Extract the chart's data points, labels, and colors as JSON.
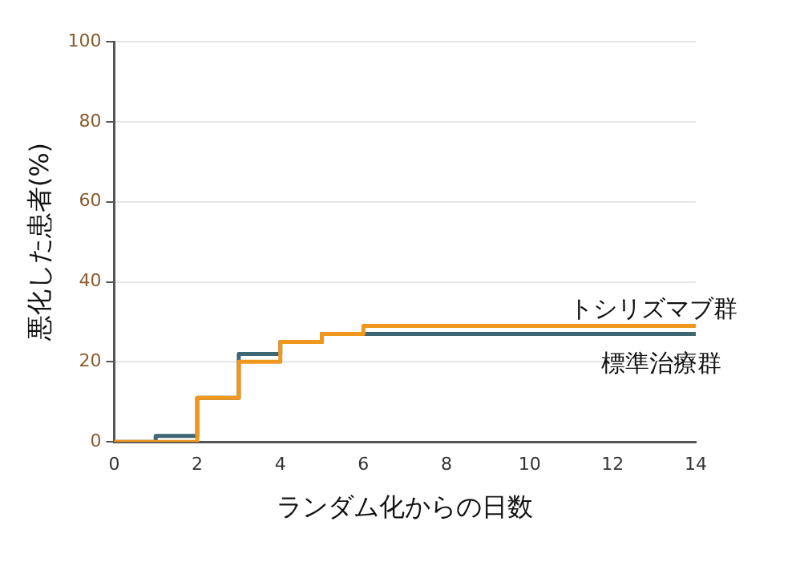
{
  "chart_data": {
    "type": "step",
    "xlabel": "ランダム化からの日数",
    "ylabel": "悪化した患者(%)",
    "xlim": [
      0,
      14
    ],
    "xticks": [
      0,
      2,
      4,
      6,
      8,
      10,
      12,
      14
    ],
    "ylim": [
      0,
      100
    ],
    "yticks": [
      0,
      20,
      40,
      60,
      80,
      100
    ],
    "grid": "y",
    "series": [
      {
        "name": "標準治療群",
        "color": "#3e6673",
        "x": [
          0,
          1,
          2,
          3,
          4,
          5,
          14
        ],
        "values": [
          0,
          1.5,
          11,
          22,
          25,
          27,
          27
        ]
      },
      {
        "name": "トシリズマブ群",
        "color": "#f0971e",
        "x": [
          0,
          2,
          3,
          4,
          5,
          6,
          14
        ],
        "values": [
          0,
          11,
          20,
          25,
          27,
          29,
          29
        ]
      }
    ]
  }
}
